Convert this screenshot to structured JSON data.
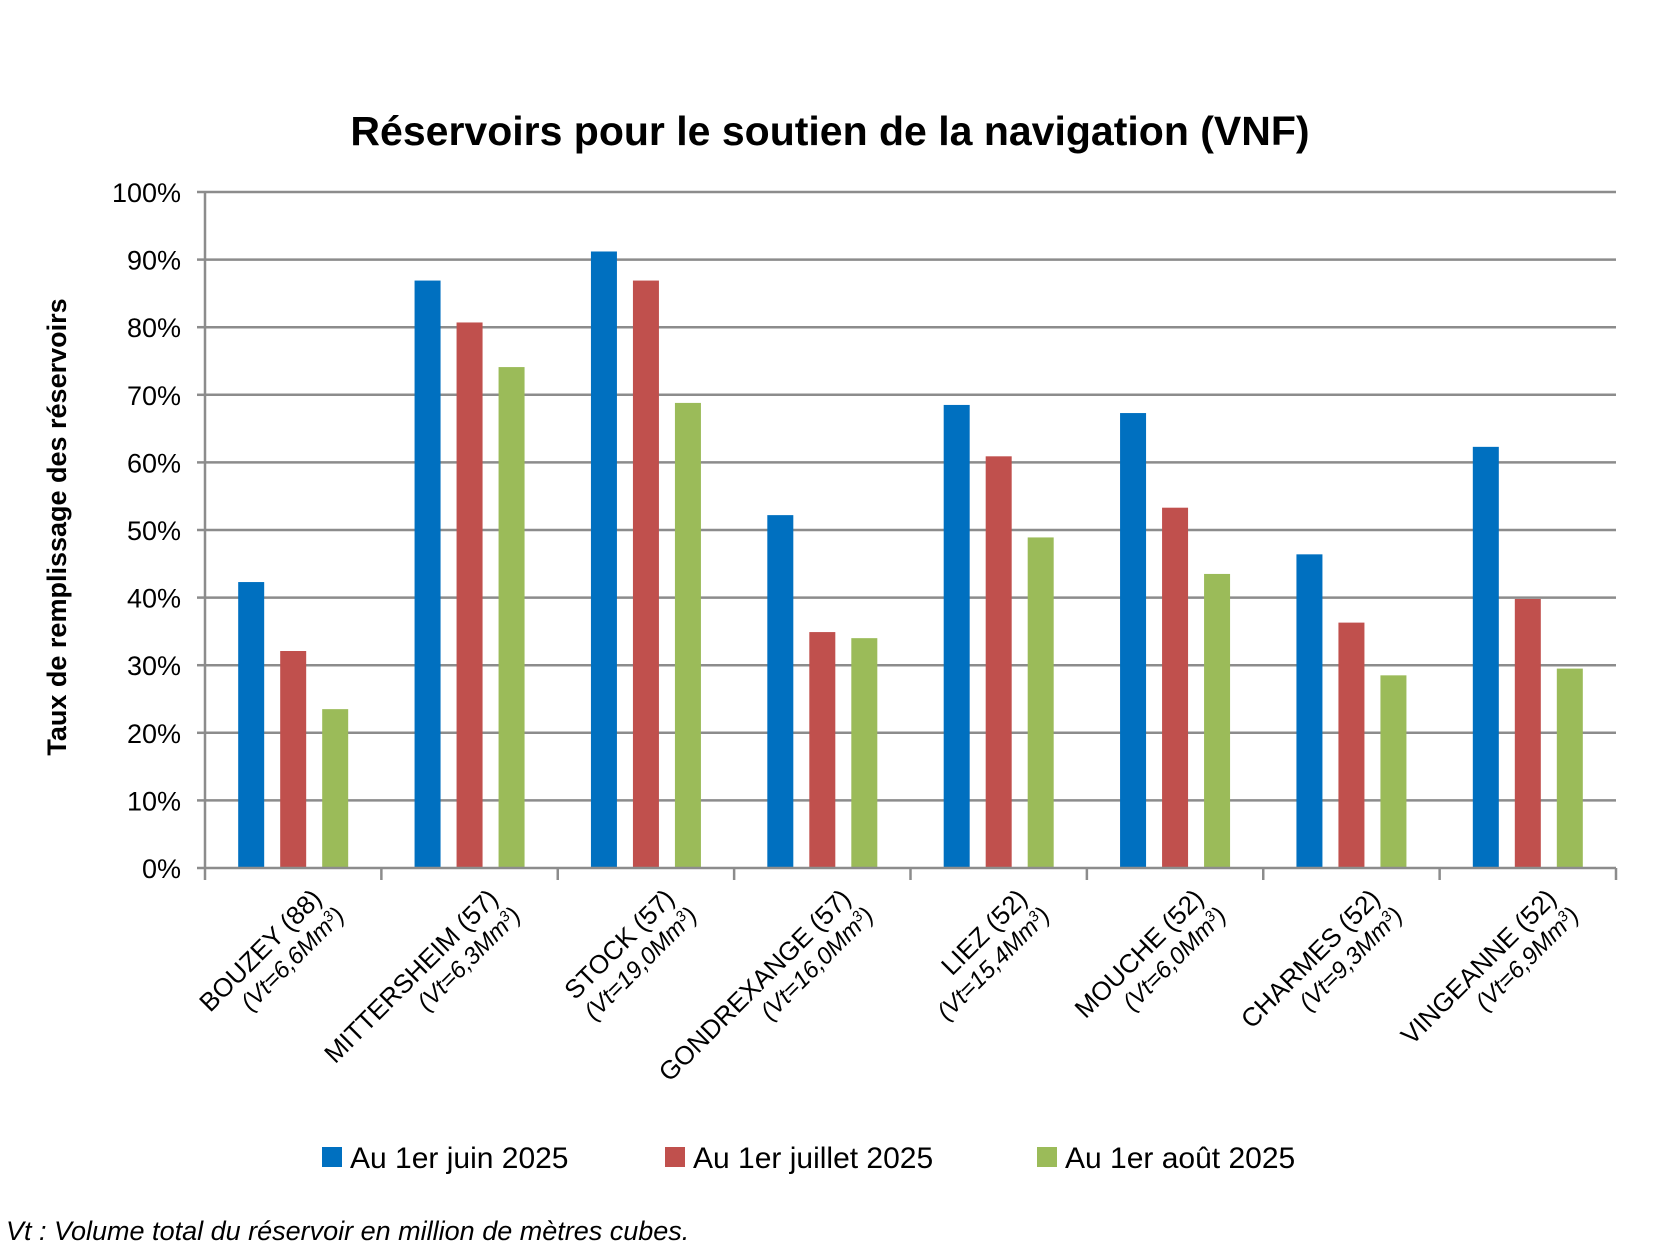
{
  "chart_data": {
    "type": "bar",
    "title": "Réservoirs pour le soutien de la navigation (VNF)",
    "ylabel": "Taux de remplissage des réservoirs",
    "xlabel": "",
    "ylim": [
      0,
      100
    ],
    "ytick_labels": [
      "0%",
      "10%",
      "20%",
      "30%",
      "40%",
      "50%",
      "60%",
      "70%",
      "80%",
      "90%",
      "100%"
    ],
    "grid": true,
    "legend_position": "bottom",
    "categories": [
      {
        "name": "BOUZEY (88)",
        "volume": "(Vt=6,6Mm",
        "sup": "3",
        "close": ")"
      },
      {
        "name": "MITTERSHEIM (57)",
        "volume": "(Vt=6,3Mm",
        "sup": "3",
        "close": ")"
      },
      {
        "name": "STOCK (57)",
        "volume": "(Vt=19,0Mm",
        "sup": "3",
        "close": ")"
      },
      {
        "name": "GONDREXANGE (57)",
        "volume": "(Vt=16,0Mm",
        "sup": "3",
        "close": ")"
      },
      {
        "name": "LIEZ (52)",
        "volume": "(Vt=15,4Mm",
        "sup": "3",
        "close": ")"
      },
      {
        "name": "MOUCHE (52)",
        "volume": "(Vt=6,0Mm",
        "sup": "3",
        "close": ")"
      },
      {
        "name": "CHARMES (52)",
        "volume": "(Vt=9,3Mm",
        "sup": "3",
        "close": ")"
      },
      {
        "name": "VINGEANNE (52)",
        "volume": "(Vt=6,9Mm",
        "sup": "3",
        "close": ")"
      }
    ],
    "series": [
      {
        "name": "Au 1er juin 2025",
        "color": "#0070C0",
        "values": [
          42.3,
          86.9,
          91.2,
          52.2,
          68.5,
          67.3,
          46.4,
          62.3
        ]
      },
      {
        "name": "Au 1er juillet 2025",
        "color": "#C0504D",
        "values": [
          32.1,
          80.7,
          86.9,
          34.9,
          60.9,
          53.3,
          36.3,
          39.8
        ]
      },
      {
        "name": "Au 1er août 2025",
        "color": "#9BBB59",
        "values": [
          23.5,
          74.1,
          68.8,
          34.0,
          48.9,
          43.5,
          28.5,
          29.5
        ]
      }
    ]
  },
  "footnote": "Vt : Volume total du réservoir en million de mètres cubes."
}
